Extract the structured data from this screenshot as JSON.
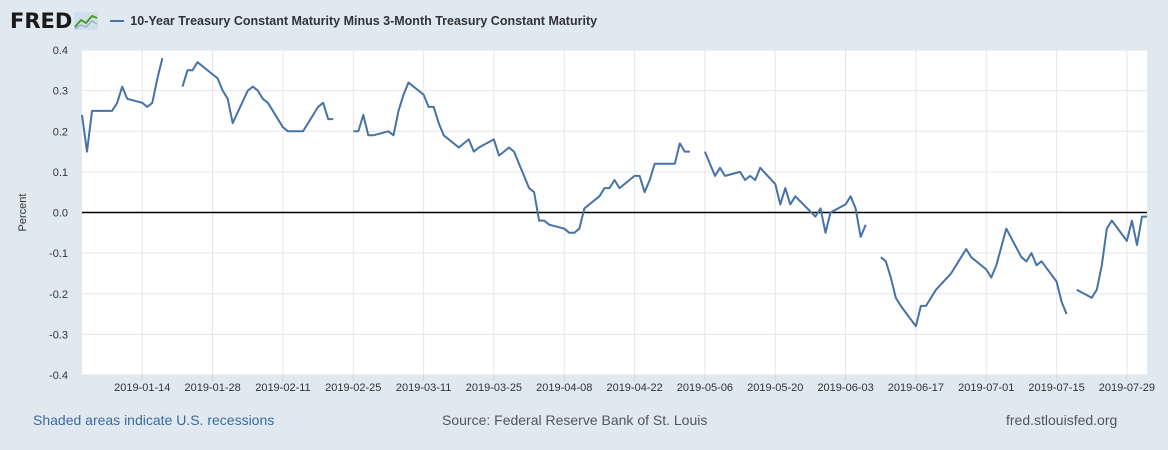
{
  "header": {
    "logo": "FRED",
    "logo_icon": "line-chart-icon",
    "series_title": "10-Year Treasury Constant Maturity Minus 3-Month Treasury Constant Maturity"
  },
  "footer": {
    "recessions": "Shaded areas indicate U.S. recessions",
    "source": "Source: Federal Reserve Bank of St. Louis",
    "site": "fred.stlouisfed.org"
  },
  "colors": {
    "series": "#4572a7",
    "background": "#e1e9f0",
    "plot": "#ffffff",
    "zero_line": "#000000"
  },
  "chart_data": {
    "type": "line",
    "title": "10-Year Treasury Constant Maturity Minus 3-Month Treasury Constant Maturity",
    "ylabel": "Percent",
    "xlabel": "",
    "ylim": [
      -0.4,
      0.4
    ],
    "yticks": [
      "0.4",
      "0.3",
      "0.2",
      "0.1",
      "0.0",
      "-0.1",
      "-0.2",
      "-0.3",
      "-0.4"
    ],
    "xticks": [
      "2019-01-14",
      "2019-01-28",
      "2019-02-11",
      "2019-02-25",
      "2019-03-11",
      "2019-03-25",
      "2019-04-08",
      "2019-04-22",
      "2019-05-06",
      "2019-05-20",
      "2019-06-03",
      "2019-06-17",
      "2019-07-01",
      "2019-07-15",
      "2019-07-29"
    ],
    "xlim": [
      "2019-01-02",
      "2019-08-02"
    ],
    "grid": true,
    "reference_line": 0,
    "series": [
      {
        "segments": [
          [
            [
              "2019-01-02",
              0.24
            ],
            [
              "2019-01-03",
              0.15
            ],
            [
              "2019-01-04",
              0.25
            ],
            [
              "2019-01-07",
              0.25
            ],
            [
              "2019-01-08",
              0.25
            ],
            [
              "2019-01-09",
              0.27
            ],
            [
              "2019-01-10",
              0.31
            ],
            [
              "2019-01-11",
              0.28
            ],
            [
              "2019-01-14",
              0.27
            ],
            [
              "2019-01-15",
              0.26
            ],
            [
              "2019-01-16",
              0.27
            ],
            [
              "2019-01-17",
              0.33
            ],
            [
              "2019-01-18",
              0.38
            ]
          ],
          [
            [
              "2019-01-22",
              0.31
            ],
            [
              "2019-01-23",
              0.35
            ],
            [
              "2019-01-24",
              0.35
            ],
            [
              "2019-01-25",
              0.37
            ],
            [
              "2019-01-28",
              0.34
            ],
            [
              "2019-01-29",
              0.33
            ],
            [
              "2019-01-30",
              0.3
            ],
            [
              "2019-01-31",
              0.28
            ],
            [
              "2019-02-01",
              0.22
            ],
            [
              "2019-02-04",
              0.3
            ],
            [
              "2019-02-05",
              0.31
            ],
            [
              "2019-02-06",
              0.3
            ],
            [
              "2019-02-07",
              0.28
            ],
            [
              "2019-02-08",
              0.27
            ],
            [
              "2019-02-11",
              0.21
            ],
            [
              "2019-02-12",
              0.2
            ],
            [
              "2019-02-13",
              0.2
            ],
            [
              "2019-02-14",
              0.2
            ],
            [
              "2019-02-15",
              0.2
            ],
            [
              "2019-02-18",
              0.26
            ],
            [
              "2019-02-19",
              0.27
            ],
            [
              "2019-02-20",
              0.23
            ],
            [
              "2019-02-21",
              0.23
            ]
          ],
          [
            [
              "2019-02-25",
              0.2
            ],
            [
              "2019-02-26",
              0.2
            ],
            [
              "2019-02-27",
              0.24
            ],
            [
              "2019-02-28",
              0.19
            ],
            [
              "2019-03-01",
              0.19
            ],
            [
              "2019-03-04",
              0.2
            ],
            [
              "2019-03-05",
              0.19
            ],
            [
              "2019-03-06",
              0.25
            ],
            [
              "2019-03-07",
              0.29
            ],
            [
              "2019-03-08",
              0.32
            ],
            [
              "2019-03-11",
              0.29
            ],
            [
              "2019-03-12",
              0.26
            ],
            [
              "2019-03-13",
              0.26
            ],
            [
              "2019-03-14",
              0.22
            ],
            [
              "2019-03-15",
              0.19
            ],
            [
              "2019-03-18",
              0.16
            ],
            [
              "2019-03-19",
              0.17
            ],
            [
              "2019-03-20",
              0.18
            ],
            [
              "2019-03-21",
              0.15
            ],
            [
              "2019-03-22",
              0.16
            ],
            [
              "2019-03-25",
              0.18
            ],
            [
              "2019-03-26",
              0.14
            ],
            [
              "2019-03-27",
              0.15
            ],
            [
              "2019-03-28",
              0.16
            ],
            [
              "2019-03-29",
              0.15
            ],
            [
              "2019-04-01",
              0.06
            ],
            [
              "2019-04-02",
              0.05
            ],
            [
              "2019-04-03",
              -0.02
            ],
            [
              "2019-04-04",
              -0.02
            ],
            [
              "2019-04-05",
              -0.03
            ],
            [
              "2019-04-08",
              -0.04
            ],
            [
              "2019-04-09",
              -0.05
            ],
            [
              "2019-04-10",
              -0.05
            ],
            [
              "2019-04-11",
              -0.04
            ],
            [
              "2019-04-12",
              0.01
            ],
            [
              "2019-04-15",
              0.04
            ],
            [
              "2019-04-16",
              0.06
            ],
            [
              "2019-04-17",
              0.06
            ],
            [
              "2019-04-18",
              0.08
            ],
            [
              "2019-04-19",
              0.06
            ],
            [
              "2019-04-22",
              0.09
            ],
            [
              "2019-04-23",
              0.09
            ],
            [
              "2019-04-24",
              0.05
            ],
            [
              "2019-04-25",
              0.08
            ],
            [
              "2019-04-26",
              0.12
            ],
            [
              "2019-04-29",
              0.12
            ],
            [
              "2019-04-30",
              0.12
            ],
            [
              "2019-05-01",
              0.17
            ],
            [
              "2019-05-02",
              0.15
            ],
            [
              "2019-05-03",
              0.15
            ]
          ],
          [
            [
              "2019-05-06",
              0.15
            ],
            [
              "2019-05-07",
              0.12
            ],
            [
              "2019-05-08",
              0.09
            ],
            [
              "2019-05-09",
              0.11
            ],
            [
              "2019-05-10",
              0.09
            ],
            [
              "2019-05-13",
              0.1
            ],
            [
              "2019-05-14",
              0.08
            ],
            [
              "2019-05-15",
              0.09
            ],
            [
              "2019-05-16",
              0.08
            ],
            [
              "2019-05-17",
              0.11
            ],
            [
              "2019-05-20",
              0.07
            ],
            [
              "2019-05-21",
              0.02
            ],
            [
              "2019-05-22",
              0.06
            ],
            [
              "2019-05-23",
              0.02
            ],
            [
              "2019-05-24",
              0.04
            ],
            [
              "2019-05-28",
              -0.01
            ],
            [
              "2019-05-29",
              0.01
            ],
            [
              "2019-05-30",
              -0.05
            ],
            [
              "2019-05-31",
              0.0
            ],
            [
              "2019-06-03",
              0.02
            ],
            [
              "2019-06-04",
              0.04
            ],
            [
              "2019-06-05",
              0.01
            ],
            [
              "2019-06-06",
              -0.06
            ],
            [
              "2019-06-07",
              -0.03
            ]
          ],
          [
            [
              "2019-06-10",
              -0.11
            ],
            [
              "2019-06-11",
              -0.12
            ],
            [
              "2019-06-12",
              -0.16
            ],
            [
              "2019-06-13",
              -0.21
            ],
            [
              "2019-06-14",
              -0.23
            ],
            [
              "2019-06-17",
              -0.28
            ],
            [
              "2019-06-18",
              -0.23
            ],
            [
              "2019-06-19",
              -0.23
            ],
            [
              "2019-06-20",
              -0.21
            ],
            [
              "2019-06-21",
              -0.19
            ],
            [
              "2019-06-24",
              -0.15
            ],
            [
              "2019-06-25",
              -0.13
            ],
            [
              "2019-06-26",
              -0.11
            ],
            [
              "2019-06-27",
              -0.09
            ],
            [
              "2019-06-28",
              -0.11
            ],
            [
              "2019-07-01",
              -0.14
            ],
            [
              "2019-07-02",
              -0.16
            ],
            [
              "2019-07-03",
              -0.13
            ],
            [
              "2019-07-05",
              -0.04
            ],
            [
              "2019-07-08",
              -0.11
            ],
            [
              "2019-07-09",
              -0.12
            ],
            [
              "2019-07-10",
              -0.1
            ],
            [
              "2019-07-11",
              -0.13
            ],
            [
              "2019-07-12",
              -0.12
            ],
            [
              "2019-07-15",
              -0.17
            ],
            [
              "2019-07-16",
              -0.22
            ],
            [
              "2019-07-17",
              -0.25
            ]
          ],
          [
            [
              "2019-07-19",
              -0.19
            ],
            [
              "2019-07-22",
              -0.21
            ],
            [
              "2019-07-23",
              -0.19
            ],
            [
              "2019-07-24",
              -0.13
            ],
            [
              "2019-07-25",
              -0.04
            ],
            [
              "2019-07-26",
              -0.02
            ],
            [
              "2019-07-29",
              -0.07
            ],
            [
              "2019-07-30",
              -0.02
            ],
            [
              "2019-07-31",
              -0.08
            ],
            [
              "2019-08-01",
              -0.01
            ],
            [
              "2019-08-02",
              -0.01
            ]
          ]
        ]
      }
    ]
  }
}
